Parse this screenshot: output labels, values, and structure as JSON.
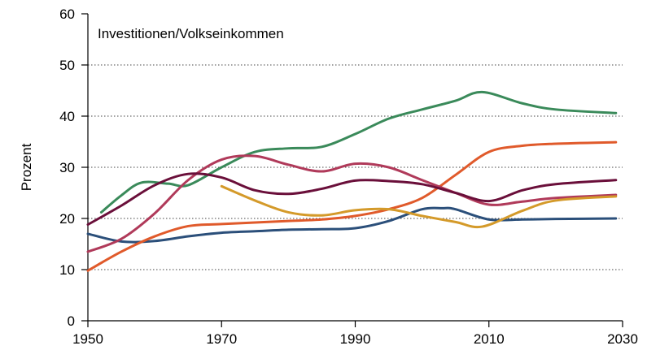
{
  "chart_data": {
    "type": "line",
    "title": "Investitionen/Volkseinkommen",
    "y_label": "Prozent",
    "xlim": [
      1950,
      2030
    ],
    "xticks": [
      1950,
      1970,
      1990,
      2010,
      2030
    ],
    "ylim": [
      0,
      60
    ],
    "yticks": [
      0,
      10,
      20,
      30,
      40,
      50,
      60
    ],
    "grid": true,
    "series": [
      {
        "color": "#2b4f7a",
        "x": [
          1950,
          1955,
          1960,
          1965,
          1970,
          1975,
          1980,
          1985,
          1990,
          1995,
          2000,
          2003,
          2005,
          2010,
          2015,
          2020,
          2029
        ],
        "values": [
          17,
          15.5,
          15.6,
          16.5,
          17.2,
          17.5,
          17.8,
          17.9,
          18.1,
          19.5,
          21.8,
          22,
          21.8,
          19.8,
          19.8,
          19.9,
          20
        ]
      },
      {
        "color": "#e05a2b",
        "x": [
          1950,
          1955,
          1960,
          1965,
          1970,
          1975,
          1980,
          1985,
          1990,
          1995,
          2000,
          2005,
          2010,
          2015,
          2020,
          2029
        ],
        "values": [
          9.8,
          13.5,
          16.5,
          18.5,
          18.9,
          19.2,
          19.5,
          19.8,
          20.5,
          21.8,
          24,
          28.5,
          33,
          34.2,
          34.6,
          34.9
        ]
      },
      {
        "color": "#3a8a5a",
        "x": [
          1952,
          1955,
          1958,
          1962,
          1965,
          1970,
          1975,
          1980,
          1985,
          1990,
          1995,
          2000,
          2005,
          2009,
          2015,
          2020,
          2029
        ],
        "values": [
          21.2,
          24.5,
          27,
          26.8,
          26.5,
          30,
          33,
          33.7,
          34,
          36.5,
          39.5,
          41.3,
          43,
          44.7,
          42.5,
          41.3,
          40.6
        ]
      },
      {
        "color": "#b03a5a",
        "x": [
          1950,
          1955,
          1960,
          1965,
          1970,
          1975,
          1980,
          1985,
          1990,
          1995,
          2000,
          2005,
          2010,
          2015,
          2020,
          2029
        ],
        "values": [
          13.5,
          16,
          21,
          27.5,
          31.5,
          32.2,
          30.5,
          29.2,
          30.7,
          30,
          27.5,
          25,
          22.7,
          23.3,
          24,
          24.6
        ]
      },
      {
        "color": "#6a0f3a",
        "x": [
          1950,
          1955,
          1960,
          1965,
          1970,
          1975,
          1980,
          1985,
          1990,
          1995,
          2000,
          2005,
          2010,
          2015,
          2020,
          2029
        ],
        "values": [
          18.8,
          22.5,
          26.5,
          28.7,
          28,
          25.5,
          24.8,
          25.8,
          27.4,
          27.3,
          26.7,
          25,
          23.4,
          25.5,
          26.7,
          27.5
        ]
      },
      {
        "color": "#d49a2a",
        "x": [
          1970,
          1975,
          1980,
          1985,
          1990,
          1995,
          2000,
          2005,
          2009,
          2015,
          2020,
          2029
        ],
        "values": [
          26.3,
          23.5,
          21.2,
          20.6,
          21.6,
          21.8,
          20.5,
          19.3,
          18.4,
          21.5,
          23.5,
          24.3
        ]
      }
    ]
  }
}
